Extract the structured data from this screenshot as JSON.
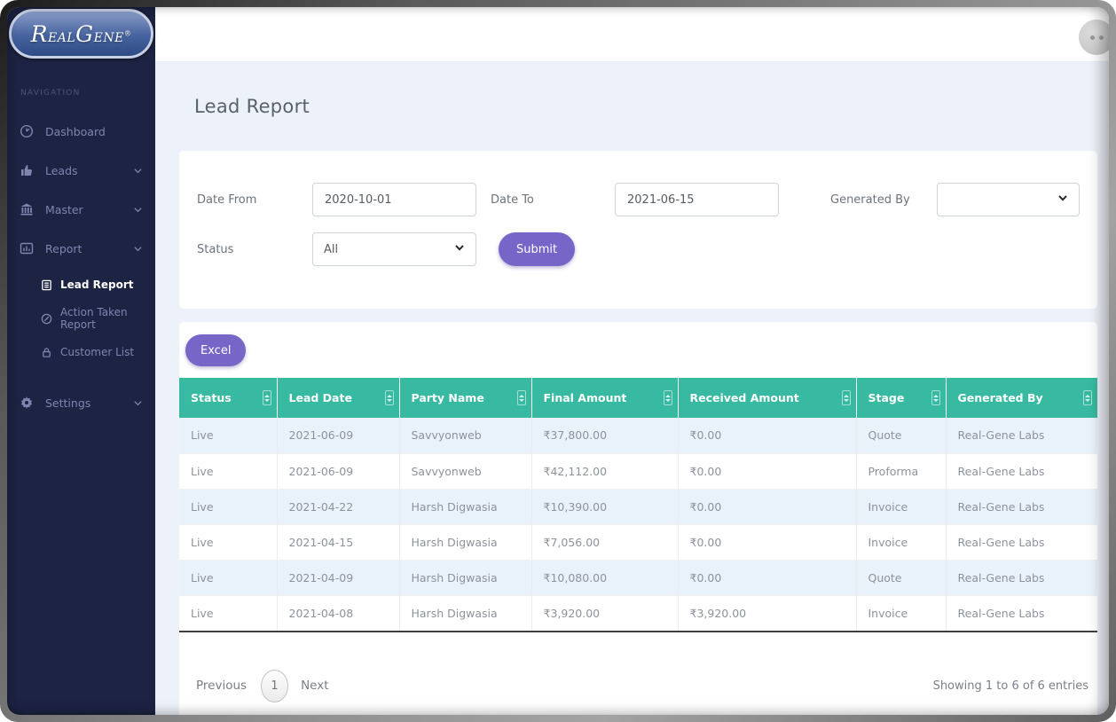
{
  "brand": {
    "name": "RealGene",
    "seg_r": "R",
    "seg_eal": "EAL",
    "seg_g": "G",
    "seg_ene": "ENE",
    "reg": "®"
  },
  "sidebar": {
    "section_label": "NAVIGATION",
    "items": [
      {
        "label": "Dashboard",
        "icon": "dashboard-icon",
        "expandable": false
      },
      {
        "label": "Leads",
        "icon": "leads-icon",
        "expandable": true
      },
      {
        "label": "Master",
        "icon": "bank-icon",
        "expandable": true
      },
      {
        "label": "Report",
        "icon": "chart-icon",
        "expandable": true,
        "expanded": true,
        "children": [
          {
            "label": "Lead Report",
            "icon": "list-icon",
            "active": true
          },
          {
            "label": "Action Taken Report",
            "icon": "pencil-circle-icon",
            "active": false
          },
          {
            "label": "Customer List",
            "icon": "lock-icon",
            "active": false
          }
        ]
      },
      {
        "label": "Settings",
        "icon": "gear-icon",
        "expandable": true
      }
    ]
  },
  "page": {
    "title": "Lead Report"
  },
  "filters": {
    "date_from": {
      "label": "Date From",
      "value": "2020-10-01"
    },
    "date_to": {
      "label": "Date To",
      "value": "2021-06-15"
    },
    "generated_by": {
      "label": "Generated By",
      "value": ""
    },
    "status": {
      "label": "Status",
      "value": "All"
    },
    "submit_label": "Submit"
  },
  "toolbar": {
    "excel_label": "Excel"
  },
  "table": {
    "columns": [
      "Status",
      "Lead Date",
      "Party Name",
      "Final Amount",
      "Received Amount",
      "Stage",
      "Generated By"
    ],
    "rows": [
      [
        "Live",
        "2021-06-09",
        "Savvyonweb",
        "₹37,800.00",
        "₹0.00",
        "Quote",
        "Real-Gene Labs"
      ],
      [
        "Live",
        "2021-06-09",
        "Savvyonweb",
        "₹42,112.00",
        "₹0.00",
        "Proforma",
        "Real-Gene Labs"
      ],
      [
        "Live",
        "2021-04-22",
        "Harsh Digwasia",
        "₹10,390.00",
        "₹0.00",
        "Invoice",
        "Real-Gene Labs"
      ],
      [
        "Live",
        "2021-04-15",
        "Harsh Digwasia",
        "₹7,056.00",
        "₹0.00",
        "Invoice",
        "Real-Gene Labs"
      ],
      [
        "Live",
        "2021-04-09",
        "Harsh Digwasia",
        "₹10,080.00",
        "₹0.00",
        "Quote",
        "Real-Gene Labs"
      ],
      [
        "Live",
        "2021-04-08",
        "Harsh Digwasia",
        "₹3,920.00",
        "₹3,920.00",
        "Invoice",
        "Real-Gene Labs"
      ]
    ]
  },
  "pagination": {
    "previous": "Previous",
    "page": "1",
    "next": "Next",
    "summary": "Showing 1 to 6 of 6 entries"
  },
  "colors": {
    "accent_purple": "#7765c8",
    "table_header_teal": "#38b9a1",
    "sidebar_navy": "#1d2342",
    "row_stripe_blue": "#e9f1fb"
  }
}
